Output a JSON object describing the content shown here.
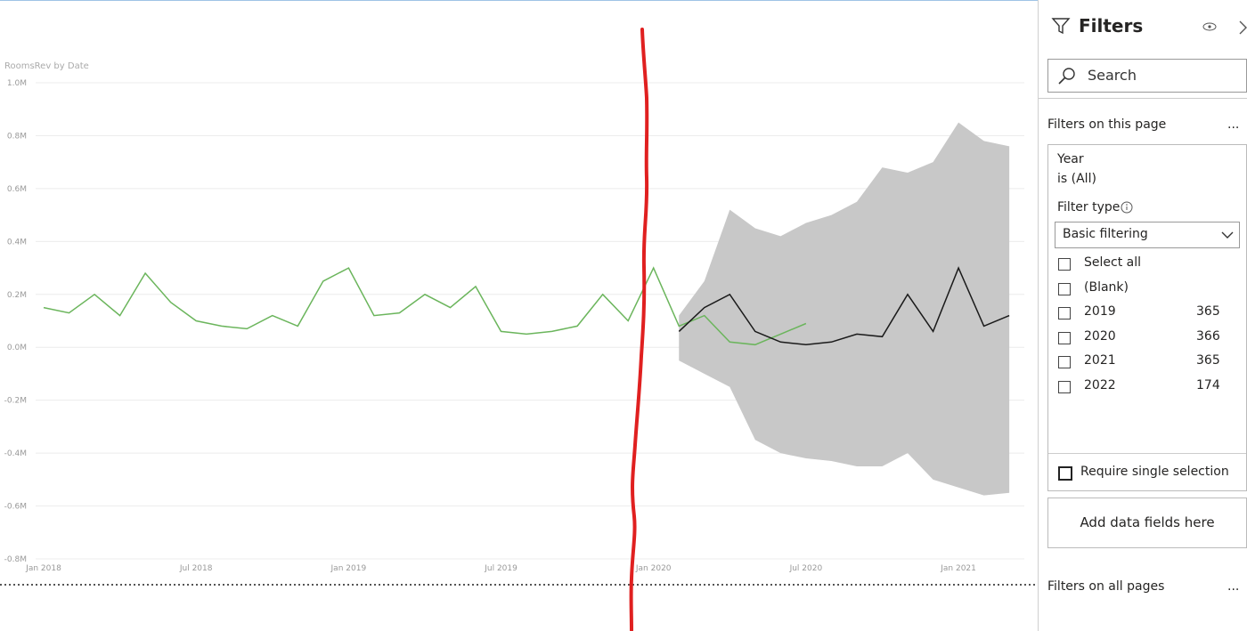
{
  "chart_data": {
    "type": "line",
    "title": "RoomsRev by Date",
    "x": [
      "2018-01",
      "2018-02",
      "2018-03",
      "2018-04",
      "2018-05",
      "2018-06",
      "2018-07",
      "2018-08",
      "2018-09",
      "2018-10",
      "2018-11",
      "2018-12",
      "2019-01",
      "2019-02",
      "2019-03",
      "2019-04",
      "2019-05",
      "2019-06",
      "2019-07",
      "2019-08",
      "2019-09",
      "2019-10",
      "2019-11",
      "2019-12",
      "2020-01",
      "2020-02",
      "2020-03",
      "2020-04",
      "2020-05",
      "2020-06",
      "2020-07",
      "2020-08",
      "2020-09",
      "2020-10",
      "2020-11",
      "2020-12",
      "2021-01",
      "2021-02",
      "2021-03"
    ],
    "series": [
      {
        "color": "#6bb55c",
        "values": [
          150000,
          130000,
          200000,
          120000,
          280000,
          170000,
          100000,
          80000,
          70000,
          120000,
          80000,
          250000,
          300000,
          120000,
          130000,
          200000,
          150000,
          230000,
          60000,
          50000,
          60000,
          80000,
          200000,
          100000,
          300000,
          80000,
          120000,
          20000,
          10000,
          50000,
          90000,
          null,
          null,
          null,
          null,
          null,
          null,
          null,
          null
        ]
      },
      {
        "color": "#1a1a1a",
        "values": [
          null,
          null,
          null,
          null,
          null,
          null,
          null,
          null,
          null,
          null,
          null,
          null,
          null,
          null,
          null,
          null,
          null,
          null,
          null,
          null,
          null,
          null,
          null,
          null,
          null,
          60000,
          150000,
          200000,
          60000,
          20000,
          10000,
          20000,
          50000,
          40000,
          200000,
          60000,
          300000,
          80000,
          120000
        ]
      }
    ],
    "band": {
      "color": "#c8c8c8",
      "upper": [
        null,
        null,
        null,
        null,
        null,
        null,
        null,
        null,
        null,
        null,
        null,
        null,
        null,
        null,
        null,
        null,
        null,
        null,
        null,
        null,
        null,
        null,
        null,
        null,
        null,
        120000,
        250000,
        520000,
        450000,
        420000,
        470000,
        500000,
        550000,
        680000,
        660000,
        700000,
        850000,
        780000,
        760000
      ],
      "lower": [
        null,
        null,
        null,
        null,
        null,
        null,
        null,
        null,
        null,
        null,
        null,
        null,
        null,
        null,
        null,
        null,
        null,
        null,
        null,
        null,
        null,
        null,
        null,
        null,
        null,
        -50000,
        -100000,
        -150000,
        -350000,
        -400000,
        -420000,
        -430000,
        -450000,
        -450000,
        -400000,
        -500000,
        -530000,
        -560000,
        -550000
      ]
    },
    "ylim": [
      -800000,
      1000000
    ],
    "yticks": [
      {
        "value": -800000,
        "label": "-0.8M"
      },
      {
        "value": -600000,
        "label": "-0.6M"
      },
      {
        "value": -400000,
        "label": "-0.4M"
      },
      {
        "value": -200000,
        "label": "-0.2M"
      },
      {
        "value": 0,
        "label": "0.0M"
      },
      {
        "value": 200000,
        "label": "0.2M"
      },
      {
        "value": 400000,
        "label": "0.4M"
      },
      {
        "value": 600000,
        "label": "0.6M"
      },
      {
        "value": 800000,
        "label": "0.8M"
      },
      {
        "value": 1000000,
        "label": "1.0M"
      }
    ],
    "xticks": [
      {
        "value": "2018-01",
        "label": "Jan 2018"
      },
      {
        "value": "2018-07",
        "label": "Jul 2018"
      },
      {
        "value": "2019-01",
        "label": "Jan 2019"
      },
      {
        "value": "2019-07",
        "label": "Jul 2019"
      },
      {
        "value": "2020-01",
        "label": "Jan 2020"
      },
      {
        "value": "2020-07",
        "label": "Jul 2020"
      },
      {
        "value": "2021-01",
        "label": "Jan 2021"
      }
    ],
    "grid": true
  },
  "filters": {
    "title": "Filters",
    "search": "Search",
    "page_section": "Filters on this page",
    "more": "...",
    "card": {
      "field": "Year",
      "state": "is (All)",
      "filter_type_label": "Filter type",
      "filter_type": "Basic filtering",
      "options": [
        {
          "label": "Select all"
        },
        {
          "label": "(Blank)"
        },
        {
          "label": "2019",
          "count": 365
        },
        {
          "label": "2020",
          "count": 366
        },
        {
          "label": "2021",
          "count": 365
        },
        {
          "label": "2022",
          "count": 174
        }
      ],
      "single": "Require single selection"
    },
    "add_fields": "Add data fields here",
    "all_pages": "Filters on all pages"
  }
}
